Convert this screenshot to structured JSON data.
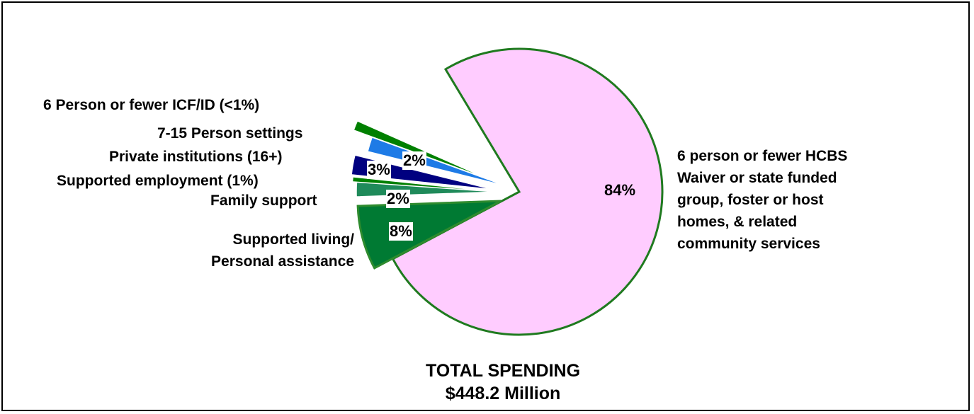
{
  "chart_data": {
    "type": "pie",
    "title": "TOTAL SPENDING",
    "subtitle": "$448.2 Million",
    "slices": [
      {
        "label": "6 person or fewer HCBS Waiver or state funded group, foster or host homes, & related community services",
        "lines": [
          "6 person or fewer HCBS",
          "Waiver or state funded",
          "group, foster or host",
          "homes, & related",
          "community services"
        ],
        "value": 84,
        "value_label": "84%",
        "color": "#ffccff",
        "label_color": "#008000"
      },
      {
        "label": "Supported living/ Personal assistance",
        "lines": [
          "Supported living/",
          "Personal assistance"
        ],
        "value": 8,
        "value_label": "8%",
        "color": "#007a33",
        "label_color": "#008000"
      },
      {
        "label": "Family support",
        "lines": [
          "Family support"
        ],
        "value": 2,
        "value_label": "2%",
        "color": "#1f8a5a",
        "label_color": "#008000"
      },
      {
        "label": "Supported employment (1%)",
        "lines": [
          "Supported employment (1%)"
        ],
        "value": 1,
        "value_label": "",
        "color": "#008000",
        "label_color": "#008000"
      },
      {
        "label": "Private institutions (16+)",
        "lines": [
          "Private institutions (16+)"
        ],
        "value": 3,
        "value_label": "3%",
        "color": "#000080",
        "label_color": "#000080"
      },
      {
        "label": "7-15 Person settings",
        "lines": [
          "7-15 Person settings"
        ],
        "value": 2,
        "value_label": "2%",
        "color": "#1e7be6",
        "label_color": "#1e5ee6"
      },
      {
        "label": "6 Person or fewer ICF/ID (<1%)",
        "lines": [
          "6 Person or fewer ICF/ID (<1%)"
        ],
        "value": 0.4,
        "value_label": "",
        "color": "#008000",
        "label_color": "#008000"
      }
    ]
  }
}
